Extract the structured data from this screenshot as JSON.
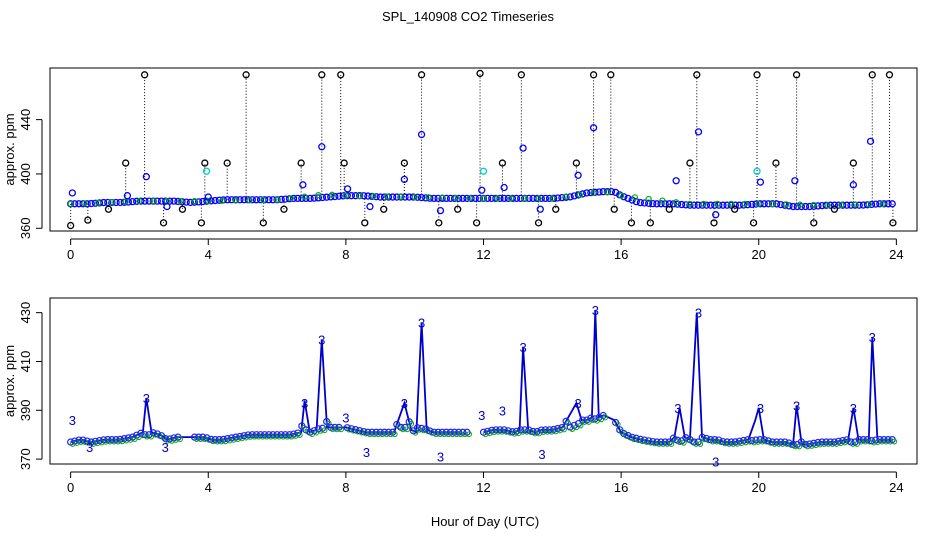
{
  "chart_data": [
    {
      "type": "scatter",
      "panel": "top",
      "title": "SPL_140908  CO2 Timeseries",
      "xlabel": "",
      "ylabel": "approx. ppm",
      "xlim": [
        -0.6,
        24.6
      ],
      "ylim": [
        358,
        478
      ],
      "xticks": [
        0,
        4,
        8,
        12,
        16,
        20,
        24
      ],
      "yticks": [
        360,
        400,
        440
      ],
      "grid": false,
      "spike_value": 473,
      "series": [
        {
          "name": "baseline (blue circles)",
          "color": "#0000FF",
          "x": [
            0,
            0.5,
            1,
            1.5,
            2,
            2.5,
            3,
            3.5,
            4,
            4.5,
            5,
            5.5,
            6,
            6.5,
            7,
            7.5,
            8,
            8.5,
            9,
            9.5,
            10,
            10.5,
            11,
            11.5,
            12,
            12.5,
            13,
            13.5,
            14,
            14.5,
            15,
            15.5,
            15.8,
            16,
            16.5,
            17,
            17.5,
            18,
            18.5,
            19,
            19.5,
            20,
            20.5,
            21,
            21.5,
            22,
            22.5,
            23,
            23.5,
            23.9
          ],
          "y": [
            378,
            378,
            379,
            379,
            380,
            380,
            380,
            379,
            380,
            381,
            381,
            381,
            381,
            382,
            382,
            383,
            384,
            384,
            383,
            383,
            383,
            382,
            382,
            382,
            382,
            382,
            382,
            382,
            382,
            383,
            386,
            387,
            387,
            384,
            379,
            378,
            378,
            377,
            377,
            377,
            377,
            378,
            378,
            376,
            376,
            377,
            377,
            377,
            378,
            378
          ]
        },
        {
          "name": "variable (cyan circles)",
          "color": "#00CCCC",
          "x": [
            3.95,
            12,
            19.95
          ],
          "y": [
            402,
            402,
            402
          ]
        },
        {
          "name": "smoothed (green circles)",
          "color": "#00AA00",
          "x": [
            0,
            2,
            4,
            6,
            7.4,
            8,
            10,
            12,
            14,
            15.5,
            16,
            18,
            20,
            22,
            23.9
          ],
          "y": [
            378,
            380,
            380,
            381,
            385,
            384,
            383,
            382,
            382,
            387,
            384,
            378,
            378,
            377,
            378
          ]
        },
        {
          "name": "outliers (black circles)",
          "color": "#000000",
          "x": [
            0,
            0.5,
            1.1,
            1.6,
            2.15,
            2.7,
            3.25,
            3.8,
            3.9,
            4.55,
            5.1,
            5.6,
            6.2,
            6.7,
            7.3,
            7.85,
            7.95,
            8.55,
            9.1,
            9.7,
            10.2,
            10.7,
            11.25,
            11.8,
            11.9,
            12.55,
            13.1,
            13.6,
            14.1,
            14.7,
            15.2,
            15.7,
            15.8,
            16.3,
            16.85,
            17.4,
            18.0,
            18.2,
            18.7,
            19.3,
            19.85,
            19.95,
            20.5,
            21.1,
            21.6,
            22.2,
            22.75,
            23.3,
            23.8,
            23.9
          ],
          "y": [
            362,
            366,
            374,
            408,
            473,
            364,
            374,
            364,
            408,
            408,
            473,
            364,
            374,
            408,
            473,
            473,
            408,
            364,
            374,
            408,
            473,
            364,
            374,
            364,
            474,
            408,
            473,
            364,
            374,
            408,
            473,
            473,
            374,
            364,
            364,
            374,
            408,
            473,
            364,
            374,
            364,
            473,
            408,
            473,
            364,
            374,
            408,
            473,
            473,
            364
          ]
        },
        {
          "name": "excursions (blue circles)",
          "color": "#0000FF",
          "x": [
            0.05,
            1.65,
            2.2,
            2.8,
            4.0,
            6.75,
            7.3,
            8.05,
            8.7,
            9.7,
            10.2,
            10.75,
            11.95,
            12.6,
            13.15,
            13.65,
            14.75,
            15.2,
            17.6,
            18.25,
            18.75,
            20.05,
            21.05,
            22.75,
            23.25
          ],
          "y": [
            386,
            384,
            398,
            376,
            383,
            392,
            420,
            389,
            376,
            396,
            429,
            373,
            388,
            390,
            419,
            374,
            399,
            434,
            395,
            431,
            370,
            394,
            395,
            392,
            424
          ]
        }
      ]
    },
    {
      "type": "line",
      "panel": "bottom",
      "title": "",
      "xlabel": "Hour of Day (UTC)",
      "ylabel": "approx. ppm",
      "xlim": [
        -0.6,
        24.6
      ],
      "ylim": [
        368,
        436
      ],
      "xticks": [
        0,
        4,
        8,
        12,
        16,
        20,
        24
      ],
      "yticks": [
        370,
        390,
        410,
        430
      ],
      "grid": false,
      "marker_label": "3",
      "series": [
        {
          "name": "smoothed CO2 (blue line)",
          "color": "#0000CC",
          "x": [
            0,
            0.3,
            0.6,
            1,
            1.4,
            1.8,
            2.1,
            2.2,
            2.35,
            2.6,
            2.8,
            3.1,
            3.6,
            3.9,
            4.1,
            4.4,
            4.8,
            5.2,
            5.6,
            6.0,
            6.4,
            6.7,
            6.8,
            6.95,
            7.15,
            7.3,
            7.45,
            7.6,
            7.8,
            8.0,
            8.3,
            8.6,
            9.0,
            9.4,
            9.7,
            9.9,
            10.05,
            10.2,
            10.35,
            10.55,
            10.75,
            11.0,
            11.3,
            11.6,
            12.0,
            12.3,
            12.6,
            12.9,
            13.05,
            13.15,
            13.3,
            13.5,
            13.7,
            14.0,
            14.3,
            14.7,
            14.85,
            15.0,
            15.15,
            15.25,
            15.35,
            15.5,
            15.8,
            16.0,
            16.3,
            16.6,
            17.0,
            17.4,
            17.55,
            17.7,
            17.85,
            18.0,
            18.2,
            18.35,
            18.6,
            18.8,
            19.0,
            19.3,
            19.7,
            19.9,
            20.0,
            20.15,
            20.4,
            20.8,
            21.0,
            21.1,
            21.25,
            21.4,
            21.8,
            22.2,
            22.6,
            22.75,
            22.9,
            23.05,
            23.2,
            23.3,
            23.45,
            23.9
          ],
          "y": [
            377,
            378,
            377,
            378,
            378,
            379,
            381,
            395,
            381,
            380,
            378,
            379,
            379,
            379,
            378,
            378,
            379,
            380,
            380,
            380,
            380,
            381,
            394,
            381,
            382,
            419,
            383,
            383,
            383,
            383,
            382,
            381,
            381,
            381,
            393,
            382,
            381,
            426,
            382,
            381,
            381,
            381,
            381,
            381,
            381,
            382,
            382,
            381,
            382,
            416,
            382,
            381,
            382,
            382,
            383,
            393,
            386,
            386,
            387,
            431,
            387,
            388,
            386,
            381,
            379,
            378,
            377,
            377,
            379,
            391,
            379,
            378,
            430,
            379,
            378,
            378,
            377,
            377,
            378,
            386,
            391,
            378,
            377,
            377,
            376,
            392,
            376,
            376,
            377,
            377,
            378,
            391,
            378,
            378,
            378,
            420,
            378,
            378
          ]
        }
      ],
      "marker_points": {
        "x": [
          0.05,
          0.55,
          2.2,
          2.75,
          6.8,
          7.3,
          8.0,
          8.6,
          9.7,
          10.2,
          10.75,
          11.95,
          12.55,
          13.15,
          13.7,
          14.75,
          15.25,
          17.65,
          18.25,
          18.75,
          20.05,
          21.1,
          22.75,
          23.3
        ],
        "y": [
          386,
          375,
          395,
          375,
          393,
          419,
          387,
          373,
          393,
          426,
          371,
          388,
          390,
          416,
          372,
          393,
          431,
          391,
          430,
          369,
          391,
          392,
          391,
          420
        ]
      }
    }
  ],
  "title_text": "SPL_140908  CO2 Timeseries",
  "xlabel_text": "Hour of Day (UTC)"
}
